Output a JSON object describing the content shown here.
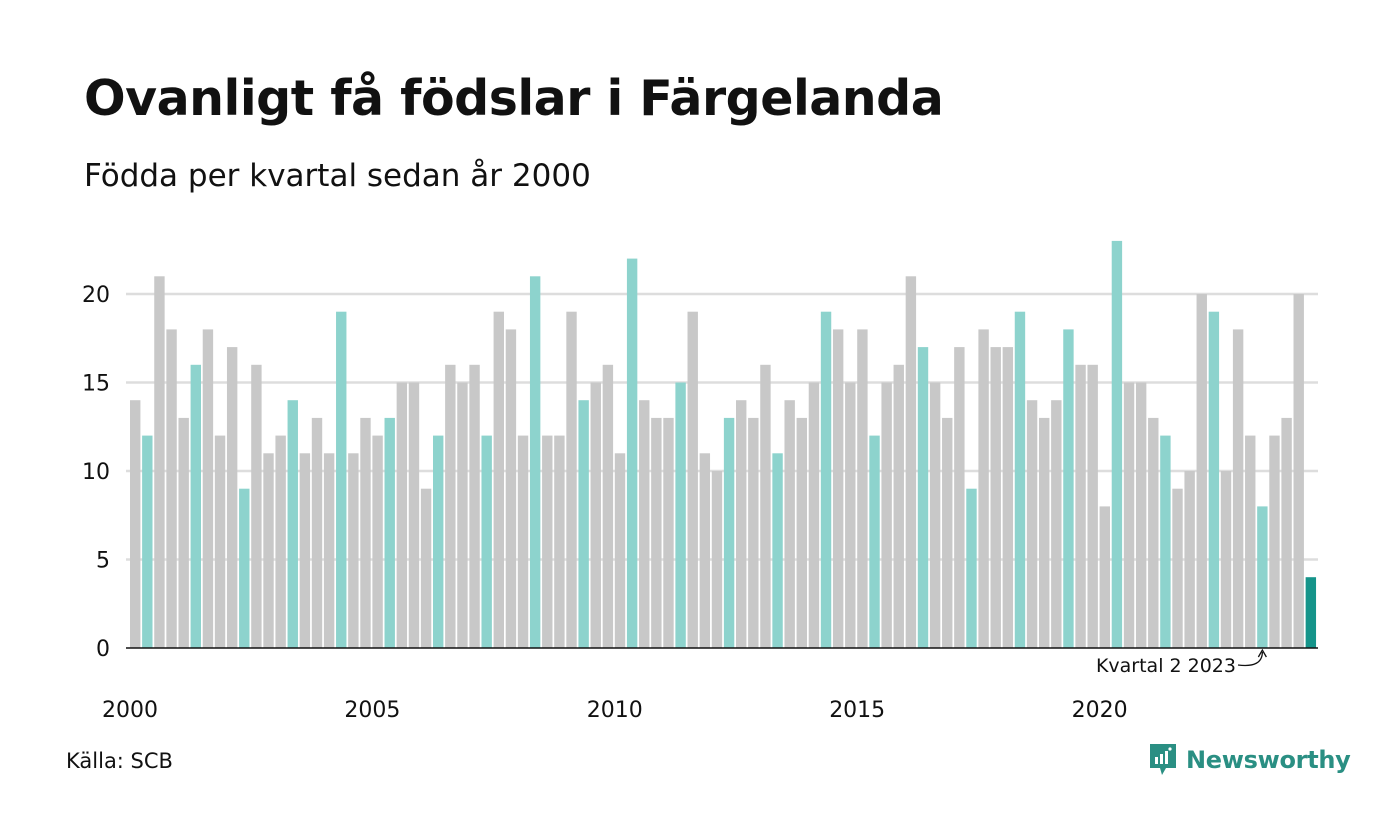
{
  "title": "Ovanligt få födslar i Färgelanda",
  "subtitle": "Födda per kvartal sedan år 2000",
  "source": "Källa: SCB",
  "brand": "Newsworthy",
  "colors": {
    "q2": "#8dd3cd",
    "other": "#c8c8c8",
    "highlight": "#15948a",
    "grid": "#dddddd",
    "axis": "#111111",
    "brand": "#2a8f83"
  },
  "chart_data": {
    "type": "bar",
    "title": "Ovanligt få födslar i Färgelanda",
    "subtitle": "Födda per kvartal sedan år 2000",
    "start_year": 2000,
    "start_quarter": 1,
    "values": [
      14,
      12,
      21,
      18,
      13,
      16,
      18,
      12,
      17,
      9,
      16,
      11,
      12,
      14,
      11,
      13,
      11,
      19,
      11,
      13,
      12,
      13,
      15,
      15,
      9,
      12,
      16,
      15,
      16,
      12,
      19,
      18,
      12,
      21,
      12,
      12,
      19,
      14,
      15,
      16,
      11,
      22,
      14,
      13,
      13,
      15,
      19,
      11,
      10,
      13,
      14,
      13,
      16,
      11,
      14,
      13,
      15,
      19,
      18,
      15,
      18,
      12,
      15,
      16,
      21,
      17,
      15,
      13,
      17,
      9,
      18,
      17,
      17,
      19,
      14,
      13,
      14,
      18,
      16,
      16,
      8,
      23,
      15,
      15,
      13,
      12,
      9,
      10,
      20,
      19,
      10,
      18,
      12,
      8,
      12,
      13,
      20,
      4
    ],
    "highlight_label": "Kvartal 2 2023",
    "yticks": [
      0,
      5,
      10,
      15,
      20
    ],
    "ylim": [
      0,
      23
    ],
    "xticks": [
      "2000",
      "2005",
      "2010",
      "2015",
      "2020"
    ],
    "grid": true
  }
}
